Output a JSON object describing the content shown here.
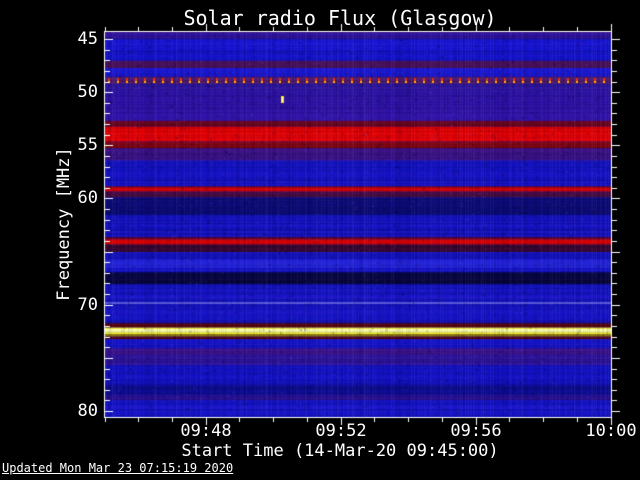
{
  "title": "Solar radio Flux (Glasgow)",
  "footer": {
    "updated": "Updated Mon Mar 23 07:15:19 2020"
  },
  "x_axis": {
    "label": "Start Time (14-Mar-20 09:45:00)",
    "tick_labels": [
      "09:48",
      "09:52",
      "09:56",
      "10:00"
    ],
    "tick_minutes_from_start": [
      3,
      7,
      11,
      15
    ]
  },
  "y_axis": {
    "label": "Frequency [MHz]",
    "tick_labels": [
      "45",
      "50",
      "55",
      "60",
      "70",
      "80"
    ],
    "tick_values_mhz": [
      45,
      50,
      55,
      60,
      70,
      80
    ]
  },
  "chart_data": {
    "type": "heatmap",
    "title": "Solar radio Flux (Glasgow)",
    "xlabel": "Start Time (14-Mar-20 09:45:00)",
    "ylabel": "Frequency [MHz]",
    "time_start": "09:45:00",
    "time_end": "10:00:00",
    "x_minor_tick_minutes": 1,
    "x_major_tick_minutes": 4,
    "y_minor_tick_mhz": 1,
    "y_major_tick_mhz": 5,
    "freq_top_mhz": 44.34,
    "freq_bottom_mhz": 80.56,
    "y_inverted": true,
    "background_color": "#1414d0",
    "axis_color": "#ffffff",
    "bands": [
      [
        44.34,
        44.6,
        "#3a17a0"
      ],
      [
        44.6,
        45.05,
        "#2a1295"
      ],
      [
        45.05,
        47.05,
        "#1414d2"
      ],
      [
        47.05,
        47.75,
        "#471058"
      ],
      [
        47.75,
        48.55,
        "#1717d2"
      ],
      [
        48.55,
        49.25,
        "#4d1a6e"
      ],
      [
        49.25,
        49.9,
        "#2c149e"
      ],
      [
        49.9,
        52.7,
        "#2e12a8"
      ],
      [
        52.7,
        53.25,
        "#6e0620"
      ],
      [
        53.25,
        54.65,
        "#e80000"
      ],
      [
        54.65,
        55.3,
        "#7e050f"
      ],
      [
        55.3,
        56.45,
        "#3a1286"
      ],
      [
        56.45,
        58.85,
        "#1212c6"
      ],
      [
        58.85,
        58.95,
        "#6e0518"
      ],
      [
        58.95,
        59.35,
        "#dc0000"
      ],
      [
        59.35,
        59.45,
        "#6e0518"
      ],
      [
        59.45,
        59.9,
        "#430a3c"
      ],
      [
        59.9,
        61.6,
        "#0b0b76"
      ],
      [
        61.6,
        63.65,
        "#1212c2"
      ],
      [
        63.65,
        63.85,
        "#6a0410"
      ],
      [
        63.85,
        64.35,
        "#d80000"
      ],
      [
        64.35,
        65.05,
        "#380830"
      ],
      [
        65.05,
        65.8,
        "#1414cc"
      ],
      [
        65.8,
        66.55,
        "#2525e2"
      ],
      [
        66.55,
        66.95,
        "#1414cc"
      ],
      [
        66.95,
        68.1,
        "#06063f"
      ],
      [
        68.1,
        69.75,
        "#1414c9"
      ],
      [
        69.75,
        69.95,
        "#5b5bd8"
      ],
      [
        69.95,
        71.45,
        "#1313c6"
      ],
      [
        71.45,
        71.75,
        "#0e0ea8"
      ],
      [
        71.75,
        72.15,
        "#5c0409"
      ],
      [
        72.15,
        72.75,
        "#ffff3d"
      ],
      [
        72.28,
        72.58,
        "#ffffb0"
      ],
      [
        72.75,
        73.0,
        "#8f7c0a"
      ],
      [
        73.0,
        73.25,
        "#4e040a"
      ],
      [
        73.25,
        74.1,
        "#1414cc"
      ],
      [
        74.1,
        74.75,
        "#3c1391"
      ],
      [
        74.75,
        75.7,
        "#2c139c"
      ],
      [
        75.7,
        77.5,
        "#1212c6"
      ],
      [
        77.5,
        78.5,
        "#0d0d96"
      ],
      [
        78.5,
        79.0,
        "#2a1094"
      ],
      [
        79.0,
        80.56,
        "#1414cc"
      ]
    ],
    "dotted_line": {
      "freq_mhz": 48.9,
      "period_seconds": 16,
      "dot_colors": [
        "#e03010",
        "#ffb400"
      ]
    },
    "point_event": {
      "time": "09:50:15",
      "minutes_from_start": 5.25,
      "freq_mhz": 50.6,
      "color": "#ffe800"
    }
  }
}
